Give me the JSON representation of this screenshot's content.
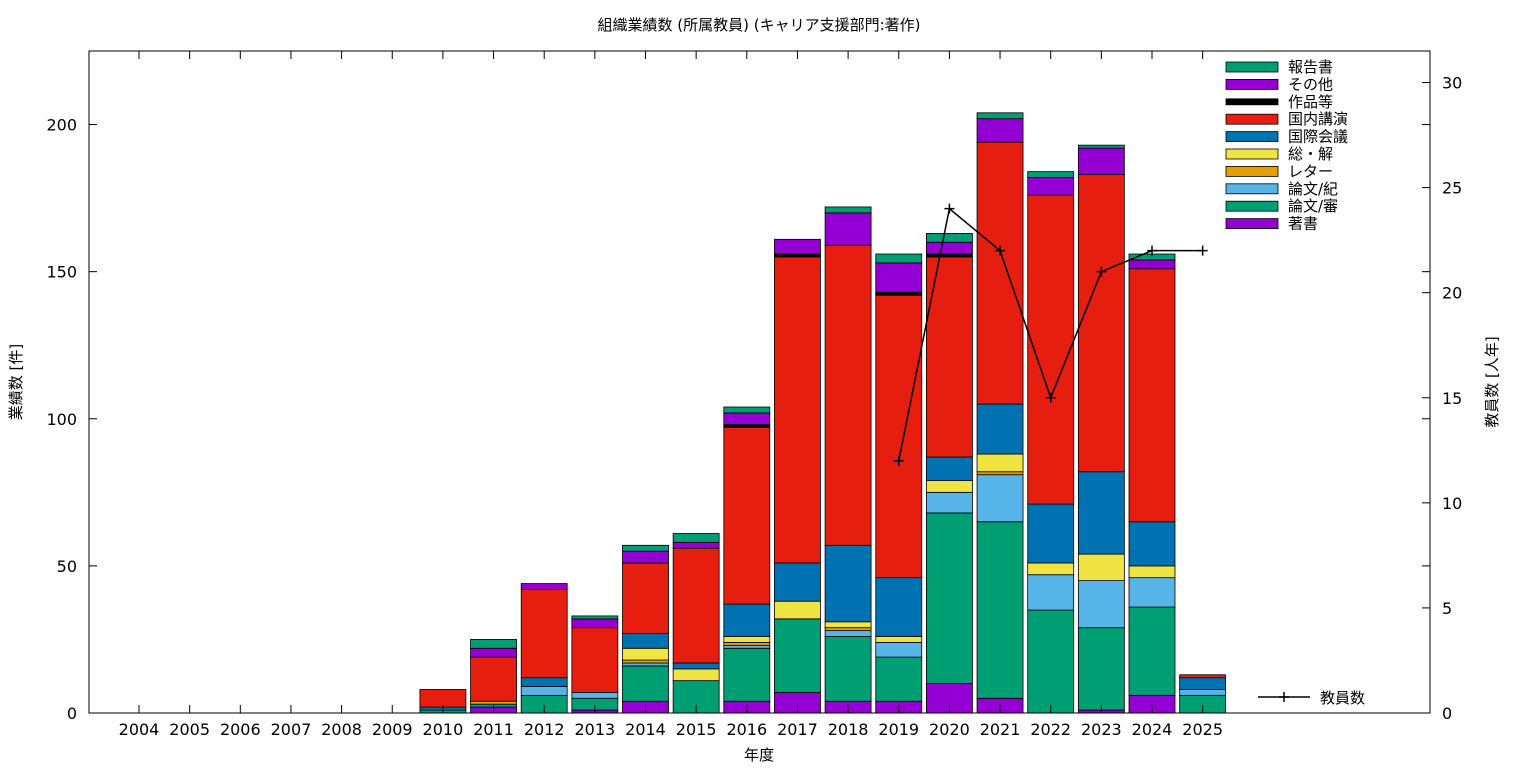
{
  "chart_data": {
    "type": "bar",
    "stacked": true,
    "title": "組織業績数 (所属教員) (キャリア支援部門:著作)",
    "xlabel": "年度",
    "ylabel": "業績数 [件]",
    "y2label": "教員数 [人年]",
    "ylim": [
      0,
      225
    ],
    "y2lim": [
      0,
      31.5
    ],
    "yticks": [
      0,
      50,
      100,
      150,
      200
    ],
    "y2ticks": [
      0,
      5,
      10,
      15,
      20,
      25,
      30
    ],
    "grid": false,
    "legend_position": "top-right",
    "categories": [
      "2004",
      "2005",
      "2006",
      "2007",
      "2008",
      "2009",
      "2010",
      "2011",
      "2012",
      "2013",
      "2014",
      "2015",
      "2016",
      "2017",
      "2018",
      "2019",
      "2020",
      "2021",
      "2022",
      "2023",
      "2024",
      "2025"
    ],
    "series": [
      {
        "name": "著書",
        "color": "#9400d3",
        "values": [
          0,
          0,
          0,
          0,
          0,
          0,
          0,
          2,
          0,
          1,
          4,
          0,
          4,
          7,
          4,
          4,
          10,
          5,
          0,
          1,
          6,
          0
        ]
      },
      {
        "name": "論文/審",
        "color": "#009e73",
        "values": [
          0,
          0,
          0,
          0,
          0,
          0,
          1,
          1,
          6,
          4,
          12,
          11,
          18,
          25,
          22,
          15,
          58,
          60,
          35,
          28,
          30,
          6
        ]
      },
      {
        "name": "論文/紀",
        "color": "#56b4e9",
        "values": [
          0,
          0,
          0,
          0,
          0,
          0,
          0,
          0,
          3,
          2,
          1,
          0,
          1,
          0,
          2,
          5,
          7,
          16,
          12,
          16,
          10,
          2
        ]
      },
      {
        "name": "レター",
        "color": "#e69f00",
        "values": [
          0,
          0,
          0,
          0,
          0,
          0,
          0,
          1,
          0,
          0,
          1,
          0,
          1,
          0,
          1,
          0,
          0,
          1,
          0,
          0,
          0,
          0
        ]
      },
      {
        "name": "総・解",
        "color": "#f0e442",
        "values": [
          0,
          0,
          0,
          0,
          0,
          0,
          0,
          0,
          0,
          0,
          4,
          4,
          2,
          6,
          2,
          2,
          4,
          6,
          4,
          9,
          4,
          0
        ]
      },
      {
        "name": "国際会議",
        "color": "#0072b2",
        "values": [
          0,
          0,
          0,
          0,
          0,
          0,
          1,
          0,
          3,
          0,
          5,
          2,
          11,
          13,
          26,
          20,
          8,
          17,
          20,
          28,
          15,
          4
        ]
      },
      {
        "name": "国内講演",
        "color": "#e51e10",
        "values": [
          0,
          0,
          0,
          0,
          0,
          0,
          6,
          15,
          30,
          22,
          24,
          39,
          60,
          104,
          102,
          96,
          68,
          89,
          105,
          101,
          86,
          1
        ]
      },
      {
        "name": "作品等",
        "color": "#000000",
        "values": [
          0,
          0,
          0,
          0,
          0,
          0,
          0,
          0,
          0,
          0,
          0,
          0,
          1,
          1,
          0,
          1,
          1,
          0,
          0,
          0,
          0,
          0
        ]
      },
      {
        "name": "その他",
        "color": "#9400d3",
        "values": [
          0,
          0,
          0,
          0,
          0,
          0,
          0,
          3,
          2,
          3,
          4,
          2,
          4,
          5,
          11,
          10,
          4,
          8,
          6,
          9,
          3,
          0
        ]
      },
      {
        "name": "報告書",
        "color": "#009e73",
        "values": [
          0,
          0,
          0,
          0,
          0,
          0,
          0,
          3,
          0,
          1,
          2,
          3,
          2,
          0,
          2,
          3,
          3,
          2,
          2,
          1,
          2,
          0
        ]
      }
    ],
    "line_series": {
      "name": "教員数",
      "color": "#000000",
      "points": [
        {
          "x": "2019",
          "y": 12
        },
        {
          "x": "2020",
          "y": 24
        },
        {
          "x": "2021",
          "y": 22
        },
        {
          "x": "2022",
          "y": 15
        },
        {
          "x": "2023",
          "y": 21
        },
        {
          "x": "2024",
          "y": 22
        },
        {
          "x": "2025",
          "y": 22
        }
      ]
    }
  }
}
